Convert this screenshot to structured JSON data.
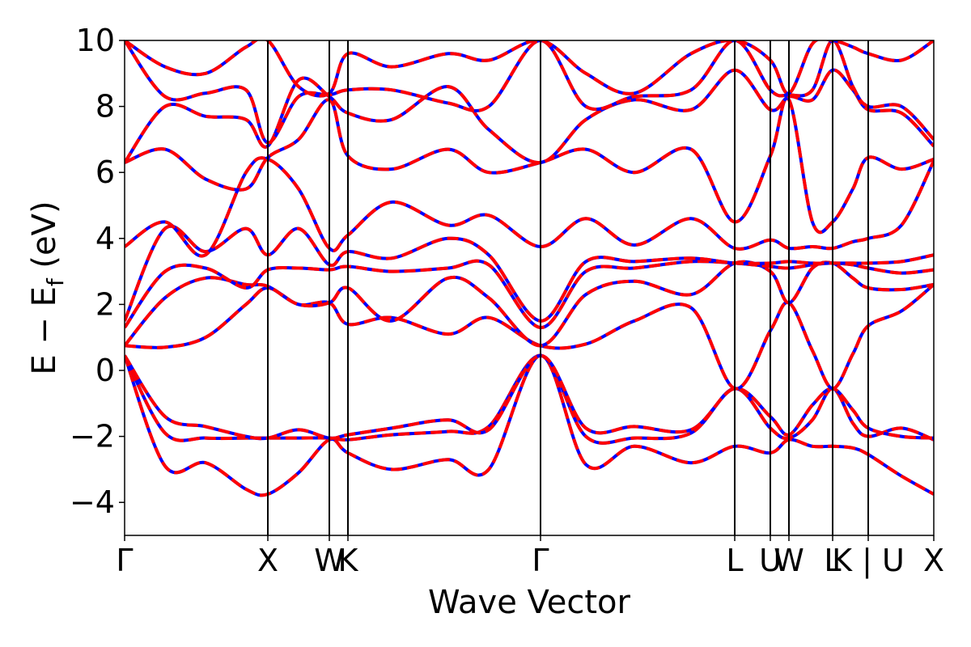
{
  "chart_data": {
    "type": "line",
    "xlabel": "Wave Vector",
    "ylabel": "E − E_f (eV)",
    "ylabel_parts": {
      "main": "E − E",
      "subscript": "f",
      "unit": " (eV)"
    },
    "ylim": [
      -5,
      10
    ],
    "yticks": [
      -4,
      -2,
      0,
      2,
      4,
      6,
      8,
      10
    ],
    "ytick_labels": [
      "−4",
      "−2",
      "0",
      "2",
      "4",
      "6",
      "8",
      "10"
    ],
    "xlim": [
      0,
      1
    ],
    "kpoints": [
      {
        "label": "Γ",
        "x": 0.0
      },
      {
        "label": "X",
        "x": 0.177
      },
      {
        "label": "W",
        "x": 0.253
      },
      {
        "label": "K",
        "x": 0.276
      },
      {
        "label": "Γ",
        "x": 0.514
      },
      {
        "label": "L",
        "x": 0.754
      },
      {
        "label": "U",
        "x": 0.798
      },
      {
        "label": "W",
        "x": 0.821
      },
      {
        "label": "L",
        "x": 0.875
      },
      {
        "label": "K | U",
        "x": 0.919
      },
      {
        "label": "X",
        "x": 1.0
      }
    ],
    "series_style": [
      {
        "color": "#0000ff",
        "dash": "none"
      },
      {
        "color": "#ff0000",
        "dash": "dashed"
      }
    ],
    "grid": false,
    "legend": "none",
    "bands": [
      {
        "x": [
          0,
          0.05,
          0.1,
          0.15,
          0.177,
          0.215,
          0.253,
          0.276,
          0.33,
          0.4,
          0.45,
          0.514,
          0.57,
          0.63,
          0.7,
          0.754,
          0.798,
          0.821,
          0.85,
          0.875,
          0.9,
          0.919,
          0.96,
          1.0
        ],
        "y": [
          0.45,
          -2.9,
          -2.8,
          -3.6,
          -3.75,
          -3.1,
          -2.1,
          -2.5,
          -3.0,
          -2.7,
          -3.0,
          0.45,
          -2.85,
          -2.3,
          -2.8,
          -2.3,
          -2.5,
          -2.1,
          -2.3,
          -2.3,
          -2.35,
          -2.55,
          -3.2,
          -3.75
        ]
      },
      {
        "x": [
          0,
          0.05,
          0.1,
          0.15,
          0.177,
          0.215,
          0.253,
          0.276,
          0.33,
          0.4,
          0.45,
          0.514,
          0.57,
          0.63,
          0.7,
          0.754,
          0.798,
          0.821,
          0.85,
          0.875,
          0.9,
          0.919,
          0.96,
          1.0
        ],
        "y": [
          0.45,
          -1.9,
          -2.05,
          -2.05,
          -2.05,
          -2.05,
          -2.05,
          -2.1,
          -1.95,
          -1.85,
          -1.7,
          0.45,
          -2.0,
          -2.05,
          -1.9,
          -0.55,
          -1.75,
          -2.05,
          -1.5,
          -0.55,
          -1.6,
          -2.0,
          -1.75,
          -2.1
        ]
      },
      {
        "x": [
          0,
          0.05,
          0.1,
          0.15,
          0.177,
          0.215,
          0.253,
          0.276,
          0.33,
          0.4,
          0.45,
          0.514,
          0.57,
          0.63,
          0.7,
          0.754,
          0.798,
          0.821,
          0.85,
          0.875,
          0.9,
          0.919,
          0.96,
          1.0
        ],
        "y": [
          0.45,
          -1.4,
          -1.7,
          -2.0,
          -2.05,
          -1.8,
          -2.05,
          -1.95,
          -1.75,
          -1.5,
          -1.8,
          0.45,
          -1.75,
          -1.7,
          -1.8,
          -0.55,
          -1.4,
          -1.95,
          -1.05,
          -0.55,
          -1.2,
          -1.75,
          -2.0,
          -2.05
        ]
      },
      {
        "x": [
          0,
          0.05,
          0.1,
          0.15,
          0.177,
          0.215,
          0.253,
          0.276,
          0.33,
          0.4,
          0.45,
          0.514,
          0.57,
          0.63,
          0.7,
          0.754,
          0.798,
          0.821,
          0.85,
          0.875,
          0.9,
          0.919,
          0.96,
          1.0
        ],
        "y": [
          0.75,
          0.7,
          1.0,
          2.0,
          2.5,
          2.0,
          2.05,
          1.4,
          1.6,
          1.1,
          1.6,
          0.75,
          0.8,
          1.5,
          1.9,
          -0.55,
          1.2,
          2.05,
          0.6,
          -0.55,
          0.5,
          1.35,
          1.8,
          2.6
        ]
      },
      {
        "x": [
          0,
          0.05,
          0.1,
          0.15,
          0.177,
          0.215,
          0.253,
          0.276,
          0.33,
          0.4,
          0.45,
          0.514,
          0.57,
          0.63,
          0.7,
          0.754,
          0.798,
          0.821,
          0.85,
          0.875,
          0.9,
          0.919,
          0.96,
          1.0
        ],
        "y": [
          0.75,
          2.2,
          2.8,
          2.6,
          2.55,
          2.0,
          2.05,
          2.5,
          1.5,
          2.8,
          2.2,
          0.75,
          2.3,
          2.7,
          2.3,
          3.25,
          3.0,
          2.05,
          3.1,
          3.25,
          2.8,
          2.5,
          2.45,
          2.6
        ]
      },
      {
        "x": [
          0,
          0.05,
          0.1,
          0.15,
          0.177,
          0.215,
          0.253,
          0.276,
          0.33,
          0.4,
          0.45,
          0.514,
          0.57,
          0.63,
          0.7,
          0.754,
          0.798,
          0.821,
          0.85,
          0.875,
          0.9,
          0.919,
          0.96,
          1.0
        ],
        "y": [
          1.3,
          3.0,
          3.1,
          2.5,
          3.05,
          3.1,
          3.05,
          3.15,
          3.0,
          3.1,
          3.2,
          1.3,
          3.0,
          3.1,
          3.3,
          3.25,
          3.15,
          3.1,
          3.2,
          3.25,
          3.2,
          3.1,
          2.95,
          3.05
        ]
      },
      {
        "x": [
          0,
          0.05,
          0.1,
          0.15,
          0.177,
          0.215,
          0.253,
          0.276,
          0.33,
          0.4,
          0.45,
          0.514,
          0.57,
          0.63,
          0.7,
          0.754,
          0.798,
          0.821,
          0.85,
          0.875,
          0.9,
          0.919,
          0.96,
          1.0
        ],
        "y": [
          1.5,
          4.3,
          3.6,
          4.3,
          3.5,
          4.3,
          3.2,
          3.6,
          3.4,
          4.0,
          3.5,
          1.5,
          3.3,
          3.3,
          3.4,
          3.25,
          3.25,
          3.3,
          3.25,
          3.25,
          3.25,
          3.25,
          3.3,
          3.5
        ]
      },
      {
        "x": [
          0,
          0.05,
          0.1,
          0.15,
          0.177,
          0.215,
          0.253,
          0.276,
          0.33,
          0.4,
          0.45,
          0.514,
          0.57,
          0.63,
          0.7,
          0.754,
          0.798,
          0.821,
          0.85,
          0.875,
          0.9,
          0.919,
          0.96,
          1.0
        ],
        "y": [
          3.75,
          4.5,
          3.5,
          6.0,
          6.4,
          5.5,
          3.7,
          4.1,
          5.1,
          4.4,
          4.7,
          3.75,
          4.6,
          3.8,
          4.6,
          3.7,
          3.95,
          3.7,
          3.75,
          3.7,
          3.9,
          4.0,
          4.4,
          6.35
        ]
      },
      {
        "x": [
          0,
          0.05,
          0.1,
          0.15,
          0.177,
          0.215,
          0.253,
          0.276,
          0.33,
          0.4,
          0.45,
          0.514,
          0.57,
          0.63,
          0.7,
          0.754,
          0.798,
          0.821,
          0.85,
          0.875,
          0.9,
          0.919,
          0.96,
          1.0
        ],
        "y": [
          6.3,
          6.7,
          5.8,
          5.5,
          6.45,
          7.0,
          8.2,
          6.5,
          6.1,
          6.7,
          6.0,
          6.3,
          6.7,
          6.0,
          6.7,
          4.5,
          6.5,
          8.2,
          4.5,
          4.5,
          5.5,
          6.45,
          6.1,
          6.4
        ]
      },
      {
        "x": [
          0,
          0.05,
          0.1,
          0.15,
          0.177,
          0.215,
          0.253,
          0.276,
          0.33,
          0.4,
          0.45,
          0.514,
          0.57,
          0.63,
          0.7,
          0.754,
          0.798,
          0.821,
          0.85,
          0.875,
          0.9,
          0.919,
          0.96,
          1.0
        ],
        "y": [
          6.3,
          8.0,
          7.7,
          7.6,
          6.8,
          8.8,
          8.3,
          7.8,
          7.6,
          8.6,
          7.3,
          6.3,
          7.6,
          8.2,
          7.9,
          9.1,
          7.9,
          8.3,
          8.2,
          9.1,
          8.5,
          7.9,
          7.8,
          6.8
        ]
      },
      {
        "x": [
          0,
          0.05,
          0.1,
          0.15,
          0.177,
          0.215,
          0.253,
          0.276,
          0.33,
          0.4,
          0.45,
          0.514,
          0.57,
          0.63,
          0.7,
          0.754,
          0.798,
          0.821,
          0.85,
          0.875,
          0.9,
          0.919,
          0.96,
          1.0
        ],
        "y": [
          10.0,
          8.3,
          8.4,
          8.5,
          6.9,
          8.3,
          8.35,
          8.5,
          8.5,
          8.1,
          8.0,
          10.0,
          8.0,
          8.3,
          8.5,
          10.0,
          8.5,
          8.35,
          8.5,
          10.0,
          8.6,
          8.0,
          8.0,
          7.0
        ]
      },
      {
        "x": [
          0,
          0.05,
          0.1,
          0.15,
          0.177,
          0.215,
          0.253,
          0.276,
          0.33,
          0.4,
          0.45,
          0.514,
          0.57,
          0.63,
          0.7,
          0.754,
          0.798,
          0.821,
          0.85,
          0.875,
          0.9,
          0.919,
          0.96,
          1.0
        ],
        "y": [
          10.0,
          9.2,
          9.0,
          9.8,
          10.0,
          8.6,
          8.4,
          9.6,
          9.2,
          9.6,
          9.4,
          10.0,
          9.0,
          8.4,
          9.6,
          10.0,
          9.4,
          8.4,
          9.9,
          10.0,
          9.8,
          9.6,
          9.4,
          10.0
        ]
      }
    ]
  }
}
